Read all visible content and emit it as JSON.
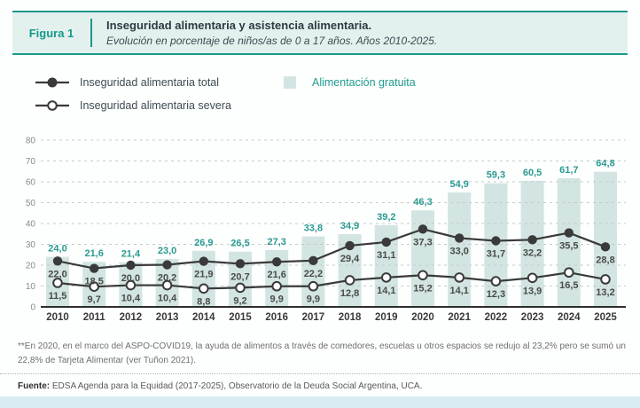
{
  "figure": {
    "label": "Figura 1",
    "title": "Inseguridad alimentaria y asistencia alimentaria.",
    "subtitle": "Evolución en porcentaje de niños/as de 0 a 17 años. Años 2010-2025."
  },
  "legend": {
    "total_label": "Inseguridad alimentaria total",
    "severe_label": "Inseguridad alimentaria severa",
    "bars_label": "Alimentación gratuita"
  },
  "colors": {
    "teal": "#1a998b",
    "teal_text": "#2a9b90",
    "bar_fill": "#d2e5e2",
    "header_bg": "#e3f1ee",
    "line": "#3a3a3a",
    "grid": "#c4cccc",
    "axis_text": "#8a8a8a",
    "year_text": "#3a3a3a",
    "value_text": "#4a4a4a",
    "bottom_band": "#d9ebf3"
  },
  "chart_data": {
    "type": "bar",
    "note": "bars with two overlaid marker lines",
    "categories": [
      "2010",
      "2011",
      "2012",
      "2013",
      "2014",
      "2015",
      "2016",
      "2017",
      "2018",
      "2019",
      "2020",
      "2021",
      "2022",
      "2023",
      "2024",
      "2025"
    ],
    "series": [
      {
        "name": "Alimentación gratuita",
        "type": "bar",
        "values": [
          24.0,
          21.6,
          21.4,
          23.0,
          26.9,
          26.5,
          27.3,
          33.8,
          34.9,
          39.2,
          46.3,
          54.9,
          59.3,
          60.5,
          61.7,
          64.8
        ]
      },
      {
        "name": "Inseguridad alimentaria total",
        "type": "line",
        "marker": "filled",
        "values": [
          22.0,
          18.5,
          20.0,
          20.2,
          21.9,
          20.7,
          21.6,
          22.2,
          29.4,
          31.1,
          37.3,
          33.0,
          31.7,
          32.2,
          35.5,
          28.8
        ]
      },
      {
        "name": "Inseguridad alimentaria severa",
        "type": "line",
        "marker": "open",
        "values": [
          11.5,
          9.7,
          10.4,
          10.4,
          8.8,
          9.2,
          9.9,
          9.9,
          12.8,
          14.1,
          15.2,
          14.1,
          12.3,
          13.9,
          16.5,
          13.2
        ]
      }
    ],
    "title": "Inseguridad alimentaria y asistencia alimentaria",
    "xlabel": "",
    "ylabel": "",
    "ylim": [
      0,
      80
    ],
    "yticks": [
      0,
      10,
      20,
      30,
      40,
      50,
      60,
      70,
      80
    ],
    "grid": true,
    "grid_style": "dashed",
    "value_labels": true,
    "decimal_separator": ",",
    "legend_position": "top"
  },
  "footer": {
    "footnote": "**En 2020, en el marco del ASPO-COVID19, la ayuda de alimentos a través de comedores, escuelas u otros espacios se redujo al 23,2% pero se sumó un 22,8% de Tarjeta Alimentar (ver Tuñon 2021).",
    "source_label": "Fuente:",
    "source_text": " EDSA Agenda para la Equidad (2017-2025), Observatorio de la Deuda Social Argentina, UCA."
  }
}
